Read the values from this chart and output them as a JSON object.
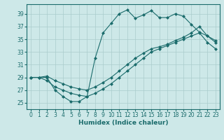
{
  "xlabel": "Humidex (Indice chaleur)",
  "bg_color": "#cde8e8",
  "grid_color": "#aacccc",
  "line_color": "#1a6b6b",
  "line1_x": [
    0,
    1,
    2,
    3,
    4,
    5,
    6,
    7,
    8,
    9,
    10,
    11,
    12,
    13,
    14,
    15,
    16,
    17,
    18,
    19,
    20,
    21,
    22,
    23
  ],
  "line1_y": [
    29,
    29,
    29,
    27,
    26,
    25.2,
    25.2,
    26,
    32,
    36,
    37.5,
    39,
    39.6,
    38.3,
    38.8,
    39.5,
    38.4,
    38.4,
    39.0,
    38.6,
    37.3,
    36.1,
    35.5,
    34.8
  ],
  "line2_x": [
    0,
    1,
    2,
    3,
    4,
    5,
    6,
    7,
    8,
    9,
    10,
    11,
    12,
    13,
    14,
    15,
    16,
    17,
    18,
    19,
    20,
    21,
    22,
    23
  ],
  "line2_y": [
    29,
    29,
    29.2,
    28.5,
    28.0,
    27.5,
    27.2,
    27.0,
    27.5,
    28.2,
    29.0,
    30.0,
    31.0,
    32.0,
    32.8,
    33.5,
    33.8,
    34.2,
    34.8,
    35.3,
    36.0,
    37.0,
    35.5,
    34.5
  ],
  "line3_x": [
    0,
    1,
    2,
    3,
    4,
    5,
    6,
    7,
    8,
    9,
    10,
    11,
    12,
    13,
    14,
    15,
    16,
    17,
    18,
    19,
    20,
    21,
    22,
    23
  ],
  "line3_y": [
    29,
    29,
    28.5,
    27.5,
    27.0,
    26.5,
    26.2,
    26.0,
    26.5,
    27.2,
    28.0,
    29.0,
    30.0,
    31.0,
    32.0,
    33.0,
    33.5,
    34.0,
    34.5,
    35.0,
    35.5,
    36.0,
    34.5,
    33.5
  ],
  "ylim": [
    24.0,
    40.5
  ],
  "xlim": [
    -0.5,
    23.5
  ],
  "yticks": [
    25,
    27,
    29,
    31,
    33,
    35,
    37,
    39
  ],
  "xticks": [
    0,
    1,
    2,
    3,
    4,
    5,
    6,
    7,
    8,
    9,
    10,
    11,
    12,
    13,
    14,
    15,
    16,
    17,
    18,
    19,
    20,
    21,
    22,
    23
  ],
  "marker": "D",
  "markersize": 2.0,
  "linewidth": 0.8,
  "fontsize_axis": 5.5,
  "fontsize_label": 6.5
}
